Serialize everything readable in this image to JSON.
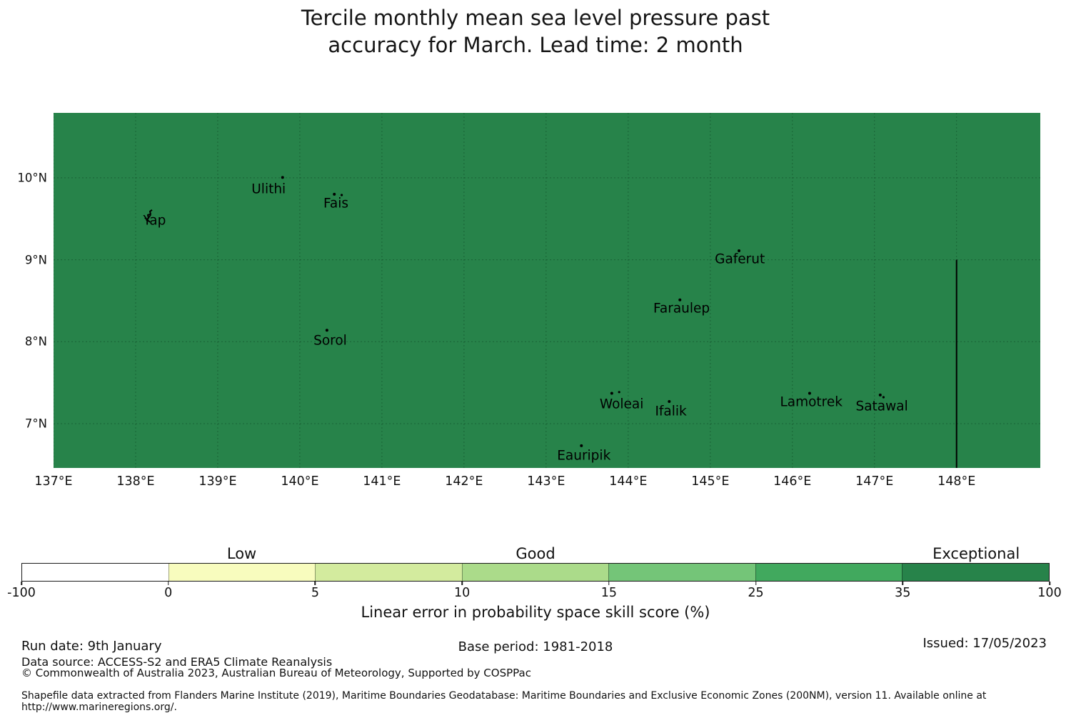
{
  "title": {
    "line1": "Tercile monthly mean sea level pressure past",
    "line2": "accuracy for March. Lead time: 2 month"
  },
  "chart_data": {
    "type": "heatmap",
    "subtype": "geographic skill-score map, single uniform fill",
    "title": "Tercile monthly mean sea level pressure past accuracy for March. Lead time: 2 month",
    "variable": "Linear error in probability space skill score (%)",
    "map_extent": {
      "lon_min": 137.0,
      "lon_max": 149.02,
      "lat_min": 6.459,
      "lat_max": 10.793
    },
    "map_fill": {
      "color": "#27834a",
      "value_bin": "35 to 100",
      "category": "Exceptional"
    },
    "grid": true,
    "x_ticks": [
      {
        "label": "137°E",
        "lon": 137
      },
      {
        "label": "138°E",
        "lon": 138
      },
      {
        "label": "139°E",
        "lon": 139
      },
      {
        "label": "140°E",
        "lon": 140
      },
      {
        "label": "141°E",
        "lon": 141
      },
      {
        "label": "142°E",
        "lon": 142
      },
      {
        "label": "143°E",
        "lon": 143
      },
      {
        "label": "144°E",
        "lon": 144
      },
      {
        "label": "145°E",
        "lon": 145
      },
      {
        "label": "146°E",
        "lon": 146
      },
      {
        "label": "147°E",
        "lon": 147
      },
      {
        "label": "148°E",
        "lon": 148
      }
    ],
    "y_ticks": [
      {
        "label": "10°N",
        "lat": 10
      },
      {
        "label": "9°N",
        "lat": 9
      },
      {
        "label": "8°N",
        "lat": 8
      },
      {
        "label": "7°N",
        "lat": 7
      }
    ],
    "islands": [
      {
        "name": "Yap",
        "lon": 138.174,
        "lat": 9.547,
        "label_lon": 138.23,
        "label_lat": 9.475,
        "marker": "islet"
      },
      {
        "name": "Ulithi",
        "lon": 139.79,
        "lat": 10.005,
        "label_lon": 139.62,
        "label_lat": 9.86,
        "marker": "dot"
      },
      {
        "name": "Fais",
        "lon": 140.42,
        "lat": 9.8,
        "label_lon": 140.44,
        "label_lat": 9.686,
        "marker": "dot",
        "extra_dots": [
          [
            140.51,
            9.79
          ]
        ]
      },
      {
        "name": "Sorol",
        "lon": 140.33,
        "lat": 8.14,
        "label_lon": 140.37,
        "label_lat": 8.012,
        "marker": "dot"
      },
      {
        "name": "Gaferut",
        "lon": 145.35,
        "lat": 9.11,
        "label_lon": 145.36,
        "label_lat": 9.005,
        "marker": "dot"
      },
      {
        "name": "Faraulep",
        "lon": 144.63,
        "lat": 8.51,
        "label_lon": 144.65,
        "label_lat": 8.403,
        "marker": "dot"
      },
      {
        "name": "Woleai",
        "lon": 143.8,
        "lat": 7.37,
        "label_lon": 143.92,
        "label_lat": 7.235,
        "marker": "dot",
        "extra_dots": [
          [
            143.89,
            7.385
          ]
        ]
      },
      {
        "name": "Ifalik",
        "lon": 144.5,
        "lat": 7.27,
        "label_lon": 144.52,
        "label_lat": 7.148,
        "marker": "dot"
      },
      {
        "name": "Lamotrek",
        "lon": 146.21,
        "lat": 7.37,
        "label_lon": 146.23,
        "label_lat": 7.261,
        "marker": "dot"
      },
      {
        "name": "Satawal",
        "lon": 147.07,
        "lat": 7.35,
        "label_lon": 147.09,
        "label_lat": 7.209,
        "marker": "dot",
        "extra_dots": [
          [
            147.11,
            7.322
          ]
        ]
      },
      {
        "name": "Eauripik",
        "lon": 143.43,
        "lat": 6.73,
        "label_lon": 143.46,
        "label_lat": 6.607,
        "marker": "dot"
      }
    ],
    "eez_boundary_line": {
      "lon": 148.0,
      "lat_start": 9.0,
      "lat_end": 6.459,
      "color": "#000000"
    },
    "colorbar": {
      "boundaries": [
        -100,
        0,
        5,
        10,
        15,
        25,
        35,
        100
      ],
      "tick_labels": [
        "-100",
        "0",
        "5",
        "10",
        "15",
        "25",
        "35",
        "100"
      ],
      "segment_colors": [
        "#ffffff",
        "#f8fcbe",
        "#d3eb9e",
        "#abdb8a",
        "#74c578",
        "#41a95e",
        "#27834a"
      ],
      "category_labels": [
        {
          "text": "Low",
          "segment_index": 1
        },
        {
          "text": "Good",
          "segment_index": 3
        },
        {
          "text": "Exceptional",
          "segment_index": 6
        }
      ],
      "axis_label": "Linear error in probability space skill score (%)"
    }
  },
  "footer": {
    "run_date": "Run date: 9th January",
    "base_period": "Base period: 1981-2018",
    "issued": "Issued: 17/05/2023",
    "data_source": "Data source: ACCESS-S2 and ERA5 Climate Reanalysis",
    "copyright": "© Commonwealth of Australia 2023, Australian Bureau of Meteorology, Supported by COSPPac",
    "shapefile_note": "Shapefile data extracted from Flanders Marine Institute (2019), Maritime Boundaries Geodatabase: Maritime Boundaries and Exclusive Economic Zones (200NM), version 11. Available online at http://www.marineregions.org/."
  }
}
